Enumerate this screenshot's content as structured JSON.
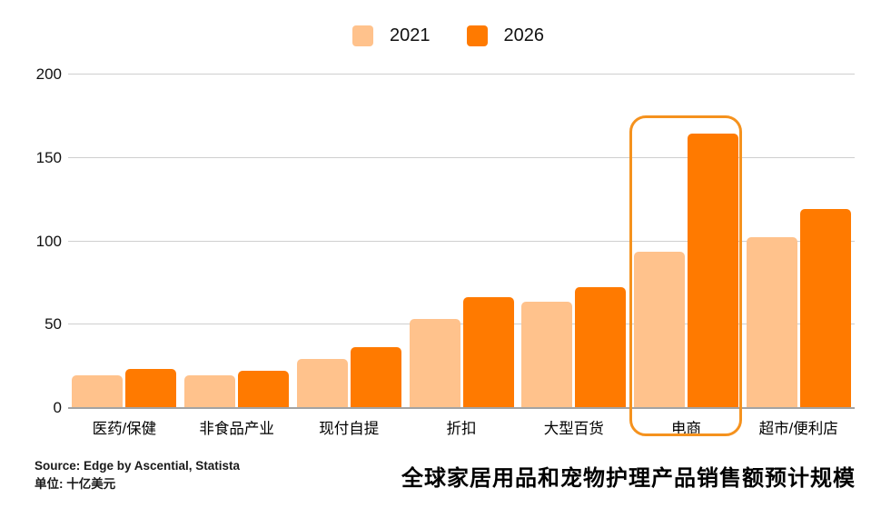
{
  "legend": {
    "items": [
      {
        "label": "2021",
        "color": "#ffc28c"
      },
      {
        "label": "2026",
        "color": "#ff7a00"
      }
    ]
  },
  "chart_data": {
    "type": "bar",
    "categories": [
      "医药/保健",
      "非食品产业",
      "现付自提",
      "折扣",
      "大型百货",
      "电商",
      "超市/便利店"
    ],
    "series": [
      {
        "name": "2021",
        "color": "#ffc28c",
        "values": [
          19,
          19,
          29,
          53,
          63,
          93,
          102
        ]
      },
      {
        "name": "2026",
        "color": "#ff7a00",
        "values": [
          23,
          22,
          36,
          66,
          72,
          164,
          119
        ]
      }
    ],
    "ylim": [
      0,
      200
    ],
    "yticks": [
      0,
      50,
      100,
      150,
      200
    ],
    "grid": true,
    "legend_position": "top",
    "highlight_category": "电商",
    "highlight_color": "#f5921e",
    "title": "全球家居用品和宠物护理产品销售额预计规模",
    "xlabel": "",
    "ylabel": ""
  },
  "footer": {
    "source": "Source:  Edge by Ascential, Statista",
    "unit": "单位: 十亿美元",
    "title": "全球家居用品和宠物护理产品销售额预计规模"
  }
}
